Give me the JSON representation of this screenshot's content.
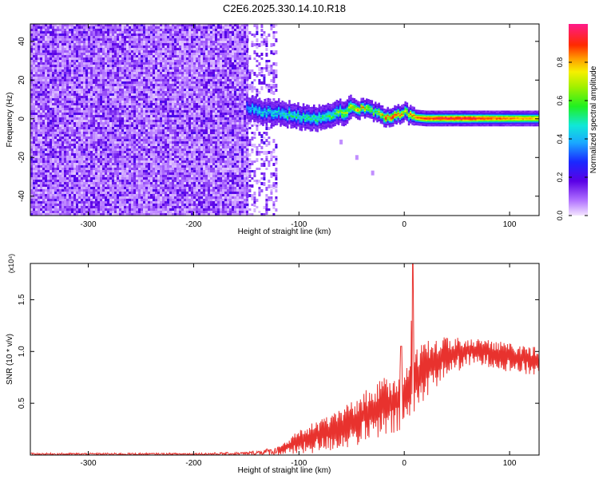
{
  "figure": {
    "title": "C2E6.2025.330.14.10.R18"
  },
  "colors": {
    "snr_line": "#e8322e",
    "axis": "#000000",
    "background": "#ffffff"
  },
  "chart_data": [
    {
      "type": "heatmap",
      "title": "C2E6.2025.330.14.10.R18",
      "xlabel": "Height of straight line (km)",
      "ylabel": "Frequency (Hz)",
      "xlim": [
        -355,
        128
      ],
      "ylim": [
        -50,
        49
      ],
      "xticks": [
        -300,
        -200,
        -100,
        0,
        100
      ],
      "yticks": [
        -40,
        -20,
        0,
        20,
        40
      ],
      "colorbar": {
        "label": "Normalized spectral amplitude",
        "range": [
          0.0,
          1.0
        ],
        "ticks": [
          "0.0",
          "0.2",
          "0.4",
          "0.6",
          "0.8"
        ],
        "colormap": "rainbow (white-purple-blue-cyan-green-yellow-red-magenta)"
      },
      "regions": [
        {
          "description": "broadband noise",
          "x_range": [
            -355,
            -150
          ],
          "freq_range": [
            -50,
            49
          ],
          "amplitude": 0.15
        },
        {
          "description": "sparse noise",
          "x_range": [
            -150,
            -122
          ],
          "freq_range": [
            -50,
            49
          ],
          "amplitude": 0.1
        }
      ],
      "signal_ridge": {
        "x": [
          -150,
          -140,
          -130,
          -120,
          -110,
          -100,
          -90,
          -80,
          -70,
          -60,
          -50,
          -40,
          -30,
          -20,
          -10,
          0,
          10,
          20,
          40,
          60,
          80,
          100,
          128
        ],
        "freq": [
          5,
          4,
          3,
          3,
          2,
          1,
          0,
          0,
          2,
          3,
          5,
          5,
          4,
          1,
          1,
          3,
          0.5,
          0,
          0,
          0,
          0,
          0,
          0
        ],
        "peak_amplitude": [
          0.35,
          0.45,
          0.45,
          0.45,
          0.5,
          0.5,
          0.5,
          0.5,
          0.55,
          0.6,
          0.7,
          0.75,
          0.6,
          0.8,
          0.9,
          0.7,
          0.85,
          0.9,
          0.95,
          0.95,
          0.9,
          0.85,
          0.8
        ]
      },
      "faint_trail": {
        "x": [
          -60,
          -45,
          -30
        ],
        "freq": [
          -12,
          -20,
          -28
        ]
      }
    },
    {
      "type": "line",
      "xlabel": "Height of straight line (km)",
      "ylabel": "SNR (10 * v/v)",
      "yscale_label": "(x10⁴)",
      "xlim": [
        -355,
        128
      ],
      "ylim": [
        0,
        1.85
      ],
      "xticks": [
        -300,
        -200,
        -100,
        0,
        100
      ],
      "yticks": [
        0.5,
        1.0,
        1.5
      ],
      "yticklabels": [
        "0.5",
        "1.0",
        "1.5"
      ],
      "grid": false,
      "series": [
        {
          "envelope_x": [
            -355,
            -200,
            -150,
            -120,
            -100,
            -80,
            -60,
            -40,
            -20,
            -5,
            0,
            5,
            8,
            10,
            20,
            40,
            60,
            80,
            100,
            128
          ],
          "envelope_low": [
            0.0,
            0.0,
            0.0,
            0.0,
            0.0,
            0.02,
            0.05,
            0.1,
            0.15,
            0.2,
            0.25,
            0.3,
            0.05,
            0.4,
            0.55,
            0.75,
            0.85,
            0.85,
            0.8,
            0.75
          ],
          "envelope_high": [
            0.02,
            0.02,
            0.03,
            0.08,
            0.25,
            0.35,
            0.45,
            0.6,
            0.75,
            0.8,
            0.85,
            0.9,
            1.85,
            1.0,
            1.1,
            1.15,
            1.15,
            1.12,
            1.08,
            1.05
          ],
          "spikes": [
            {
              "x": -3,
              "y": 1.05
            },
            {
              "x": 8,
              "y": 1.85
            }
          ]
        }
      ]
    }
  ]
}
